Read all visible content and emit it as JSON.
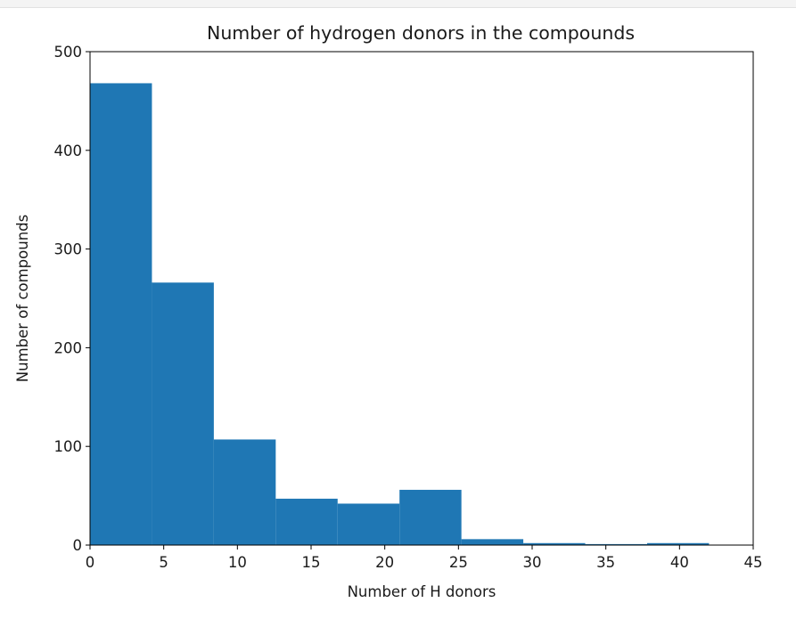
{
  "chart_data": {
    "type": "histogram",
    "title": "Number of hydrogen donors in the compounds",
    "xlabel": "Number of H donors",
    "ylabel": "Number of compounds",
    "xlim": [
      0,
      45
    ],
    "ylim": [
      0,
      500
    ],
    "xticks": [
      "0",
      "5",
      "10",
      "15",
      "20",
      "25",
      "30",
      "35",
      "40",
      "45"
    ],
    "yticks": [
      "0",
      "100",
      "200",
      "300",
      "400",
      "500"
    ],
    "bin_edges": [
      0,
      4.2,
      8.4,
      12.6,
      16.8,
      21.0,
      25.2,
      29.4,
      33.6,
      37.8,
      42.0
    ],
    "counts": [
      468,
      266,
      107,
      47,
      42,
      56,
      6,
      2,
      1,
      2
    ],
    "bar_color": "#1f77b4",
    "grid": false,
    "legend": "none"
  }
}
